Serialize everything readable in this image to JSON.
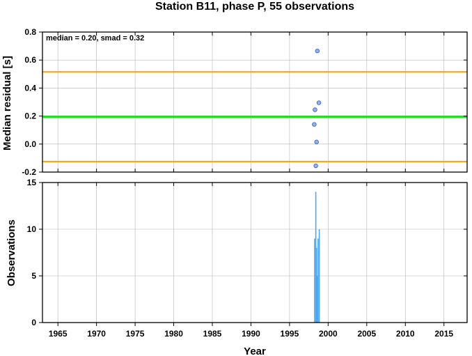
{
  "title": "Station B11, phase P, 55 observations",
  "colors": {
    "median_line": "#22dd22",
    "smad_lines": "#f5a623",
    "points_fill": "#8fb3ee",
    "points_stroke": "#3b68c4",
    "bars": "#4ea8f0",
    "grid": "#b5b5b5"
  },
  "chart_data": [
    {
      "type": "scatter",
      "ylabel": "Median residual [s]",
      "annotation": "median = 0.20, smad = 0.32",
      "xlim": [
        1963,
        2018
      ],
      "ylim": [
        -0.2,
        0.8
      ],
      "yticks": [
        "-0.2",
        "0.0",
        "0.2",
        "0.4",
        "0.6",
        "0.8"
      ],
      "ytick_values": [
        -0.2,
        0.0,
        0.2,
        0.4,
        0.6,
        0.8
      ],
      "grid": true,
      "hlines": [
        {
          "name": "median",
          "value": 0.195,
          "color": "#22dd22"
        },
        {
          "name": "median+smad",
          "value": 0.515,
          "color": "#f5a623"
        },
        {
          "name": "median-smad",
          "value": -0.125,
          "color": "#f5a623"
        }
      ],
      "points": [
        {
          "x": 1998.6,
          "y": 0.665
        },
        {
          "x": 1998.8,
          "y": 0.295
        },
        {
          "x": 1998.3,
          "y": 0.245
        },
        {
          "x": 1998.2,
          "y": 0.14
        },
        {
          "x": 1998.5,
          "y": 0.015
        },
        {
          "x": 1998.4,
          "y": -0.155
        }
      ]
    },
    {
      "type": "bar",
      "ylabel": "Observations",
      "xlabel": "Year",
      "xlim": [
        1963,
        2018
      ],
      "ylim": [
        0,
        15
      ],
      "yticks": [
        "0",
        "5",
        "10",
        "15"
      ],
      "ytick_values": [
        0,
        5,
        10,
        15
      ],
      "xticks": [
        "1965",
        "1970",
        "1975",
        "1980",
        "1985",
        "1990",
        "1995",
        "2000",
        "2005",
        "2010",
        "2015"
      ],
      "xtick_values": [
        1965,
        1970,
        1975,
        1980,
        1985,
        1990,
        1995,
        2000,
        2005,
        2010,
        2015
      ],
      "grid": true,
      "bars": [
        {
          "x": 1998.25,
          "value": 9
        },
        {
          "x": 1998.4,
          "value": 14
        },
        {
          "x": 1998.5,
          "value": 8
        },
        {
          "x": 1998.6,
          "value": 5
        },
        {
          "x": 1998.7,
          "value": 9
        },
        {
          "x": 1998.85,
          "value": 10
        }
      ]
    }
  ]
}
